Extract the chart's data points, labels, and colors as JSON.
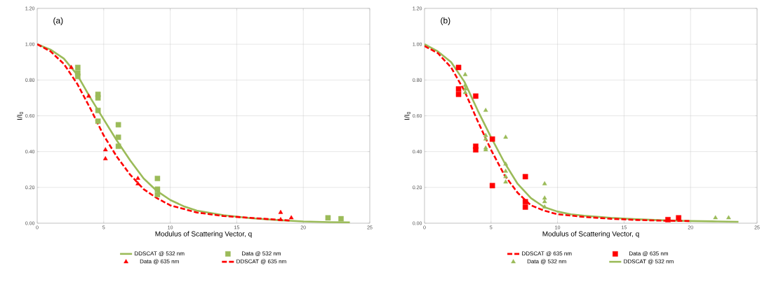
{
  "chart_data": [
    {
      "type": "scatter",
      "xlabel": "Modulus of Scattering Vector, q",
      "ylabel": "I/I$_{0}$",
      "annotations": [
        "(a)"
      ],
      "xlim": [
        0,
        25
      ],
      "ylim": [
        0,
        1.2
      ],
      "xticks": [
        0,
        5,
        10,
        15,
        20,
        25
      ],
      "yticks": [
        {
          "value": 0,
          "label": "0.00"
        },
        {
          "value": 0.2,
          "label": "0.20"
        },
        {
          "value": 0.4,
          "label": "0.40"
        },
        {
          "value": 0.6,
          "label": "0.60"
        },
        {
          "value": 0.8,
          "label": "0.80"
        },
        {
          "value": 1.0,
          "label": "1.00"
        },
        {
          "value": 1.2,
          "label": "1.20"
        }
      ],
      "grid": true,
      "legend": "bottom",
      "series": [
        {
          "name": "DDSCAT @ 532 nm",
          "type": "line",
          "line_style": "solid",
          "marker": "none",
          "color": "#9bbb59",
          "x": [
            0,
            1,
            2,
            3,
            4,
            5,
            6,
            7,
            8,
            9,
            10,
            11,
            12,
            14,
            16,
            18,
            20,
            22,
            23.5
          ],
          "values": [
            1.0,
            0.97,
            0.92,
            0.83,
            0.7,
            0.58,
            0.46,
            0.35,
            0.25,
            0.18,
            0.13,
            0.095,
            0.07,
            0.045,
            0.028,
            0.018,
            0.01,
            0.006,
            0.005
          ]
        },
        {
          "name": "Data @ 532 nm",
          "type": "scatter",
          "marker": "square",
          "color": "#9bbb59",
          "x": [
            3.05,
            3.05,
            3.05,
            4.57,
            4.57,
            4.57,
            4.57,
            6.1,
            6.1,
            6.1,
            9.04,
            9.04,
            9.04,
            21.86,
            22.84
          ],
          "values": [
            0.87,
            0.84,
            0.82,
            0.72,
            0.7,
            0.63,
            0.57,
            0.55,
            0.48,
            0.43,
            0.25,
            0.19,
            0.16,
            0.03,
            0.025
          ]
        },
        {
          "name": "Data @ 635 nm",
          "type": "scatter",
          "marker": "triangle",
          "color": "#ff0000",
          "x": [
            2.56,
            3.87,
            5.13,
            5.13,
            7.57,
            7.57,
            18.3,
            18.3,
            19.1
          ],
          "values": [
            0.87,
            0.71,
            0.41,
            0.36,
            0.25,
            0.22,
            0.06,
            0.02,
            0.03
          ]
        },
        {
          "name": "DDSCAT @ 635 nm",
          "type": "line",
          "line_style": "dashed",
          "marker": "none",
          "color": "#ff0000",
          "x": [
            0,
            1,
            2,
            3,
            4,
            5,
            6,
            7,
            8,
            9,
            10,
            11,
            12,
            14,
            16,
            18,
            19
          ],
          "values": [
            1.0,
            0.96,
            0.89,
            0.78,
            0.64,
            0.49,
            0.37,
            0.27,
            0.19,
            0.14,
            0.1,
            0.08,
            0.06,
            0.04,
            0.03,
            0.02,
            0.015
          ]
        }
      ]
    },
    {
      "type": "scatter",
      "xlabel": "Modulus of Scattering Vector, q",
      "ylabel": "I/I$_{0}$",
      "annotations": [
        "(b)"
      ],
      "xlim": [
        0,
        25
      ],
      "ylim": [
        0,
        1.2
      ],
      "xticks": [
        0,
        5,
        10,
        15,
        20,
        25
      ],
      "yticks": [
        {
          "value": 0,
          "label": "0.00"
        },
        {
          "value": 0.2,
          "label": "0.20"
        },
        {
          "value": 0.4,
          "label": "0.40"
        },
        {
          "value": 0.6,
          "label": "0.60"
        },
        {
          "value": 0.8,
          "label": "0.80"
        },
        {
          "value": 1.0,
          "label": "1.00"
        },
        {
          "value": 1.2,
          "label": "1.20"
        }
      ],
      "grid": true,
      "legend": "bottom",
      "series": [
        {
          "name": "DDSCAT @ 635 nm",
          "type": "line",
          "line_style": "dashed",
          "marker": "none",
          "color": "#ff0000",
          "x": [
            0,
            1,
            2,
            3,
            4,
            5,
            6,
            7,
            8,
            9,
            10,
            12,
            14,
            16,
            18,
            20
          ],
          "values": [
            0.99,
            0.95,
            0.87,
            0.74,
            0.57,
            0.41,
            0.27,
            0.17,
            0.1,
            0.07,
            0.05,
            0.035,
            0.025,
            0.018,
            0.014,
            0.012
          ]
        },
        {
          "name": "Data @ 635 nm",
          "type": "scatter",
          "marker": "square",
          "color": "#ff0000",
          "x": [
            2.56,
            2.56,
            2.56,
            3.85,
            3.85,
            3.85,
            5.1,
            5.1,
            7.58,
            7.58,
            7.58,
            18.3,
            19.1
          ],
          "values": [
            0.87,
            0.75,
            0.72,
            0.71,
            0.43,
            0.41,
            0.47,
            0.21,
            0.26,
            0.12,
            0.09,
            0.02,
            0.03
          ]
        },
        {
          "name": "Data @ 532 nm",
          "type": "scatter",
          "marker": "triangle",
          "color": "#9bbb59",
          "x": [
            3.06,
            3.06,
            3.06,
            3.06,
            4.6,
            4.6,
            4.6,
            4.6,
            4.6,
            6.1,
            6.1,
            6.1,
            6.1,
            6.1,
            9.03,
            9.03,
            9.03,
            9.03,
            21.87,
            22.86
          ],
          "values": [
            0.83,
            0.77,
            0.75,
            0.73,
            0.63,
            0.49,
            0.47,
            0.42,
            0.41,
            0.48,
            0.33,
            0.29,
            0.26,
            0.23,
            0.22,
            0.14,
            0.12,
            0.09,
            0.03,
            0.03
          ]
        },
        {
          "name": "DDSCAT @ 532 nm",
          "type": "line",
          "line_style": "solid",
          "marker": "none",
          "color": "#9bbb59",
          "x": [
            0,
            1,
            2,
            3,
            4,
            5,
            6,
            7,
            8,
            9,
            10,
            11,
            12,
            14,
            16,
            18,
            20,
            22,
            23.6
          ],
          "values": [
            1.0,
            0.96,
            0.9,
            0.79,
            0.63,
            0.48,
            0.34,
            0.22,
            0.14,
            0.09,
            0.065,
            0.05,
            0.042,
            0.03,
            0.022,
            0.016,
            0.012,
            0.01,
            0.008
          ]
        }
      ]
    }
  ]
}
